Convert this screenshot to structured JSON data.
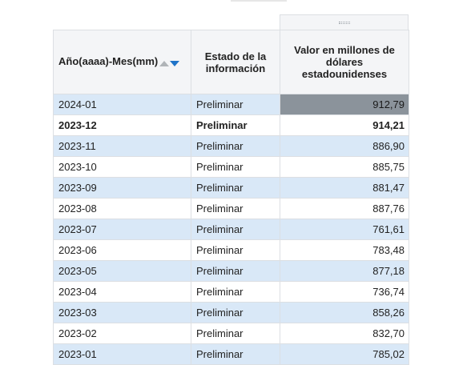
{
  "header": {
    "col1": "Año(aaaa)-Mes(mm)",
    "col2": "Estado de la información",
    "col3": "Valor en millones de dólares estadounidenses"
  },
  "colors": {
    "row_alt": "#d9e8f7",
    "highlight": "#8b939b",
    "sort_active": "#1e73c8"
  },
  "rows": [
    {
      "period": "2024-01",
      "status": "Preliminar",
      "value": "912,79"
    },
    {
      "period": "2023-12",
      "status": "Preliminar",
      "value": "914,21"
    },
    {
      "period": "2023-11",
      "status": "Preliminar",
      "value": "886,90"
    },
    {
      "period": "2023-10",
      "status": "Preliminar",
      "value": "885,75"
    },
    {
      "period": "2023-09",
      "status": "Preliminar",
      "value": "881,47"
    },
    {
      "period": "2023-08",
      "status": "Preliminar",
      "value": "887,76"
    },
    {
      "period": "2023-07",
      "status": "Preliminar",
      "value": "761,61"
    },
    {
      "period": "2023-06",
      "status": "Preliminar",
      "value": "783,48"
    },
    {
      "period": "2023-05",
      "status": "Preliminar",
      "value": "877,18"
    },
    {
      "period": "2023-04",
      "status": "Preliminar",
      "value": "736,74"
    },
    {
      "period": "2023-03",
      "status": "Preliminar",
      "value": "858,26"
    },
    {
      "period": "2023-02",
      "status": "Preliminar",
      "value": "832,70"
    },
    {
      "period": "2023-01",
      "status": "Preliminar",
      "value": "785,02"
    }
  ]
}
